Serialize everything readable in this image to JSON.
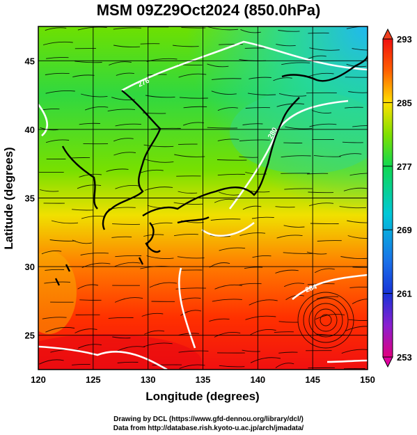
{
  "title": "MSM 09Z29Oct2024 (850.0hPa)",
  "map": {
    "xlabel": "Longitude (degrees)",
    "ylabel": "Latitude  (degrees)",
    "xlim": [
      120,
      150
    ],
    "ylim": [
      22.5,
      47.5
    ],
    "xticks": [
      "120",
      "125",
      "130",
      "135",
      "140",
      "145",
      "150"
    ],
    "xtick_values": [
      120,
      125,
      130,
      135,
      140,
      145,
      150
    ],
    "yticks": [
      "25",
      "30",
      "35",
      "40",
      "45"
    ],
    "ytick_values": [
      25,
      30,
      35,
      40,
      45
    ],
    "grid": true
  },
  "colorbar": {
    "tick_labels": [
      "293",
      "285",
      "277",
      "269",
      "261",
      "253"
    ],
    "tick_values": [
      293,
      285,
      277,
      269,
      261,
      253
    ],
    "range": [
      253,
      293
    ],
    "colors": [
      "#e0007f",
      "#8a1fd0",
      "#1733d8",
      "#00c8d8",
      "#10e050",
      "#70e000",
      "#ffe000",
      "#ff6000",
      "#ff1a00",
      "#e8101a"
    ]
  },
  "contour_labels": [
    "276",
    "280",
    "284"
  ],
  "credits": {
    "line1": "Drawing by DCL (https://www.gfd-dennou.org/library/dcl/)",
    "line2": "Data from http://database.rish.kyoto-u.ac.jp/arch/jmadata/"
  }
}
